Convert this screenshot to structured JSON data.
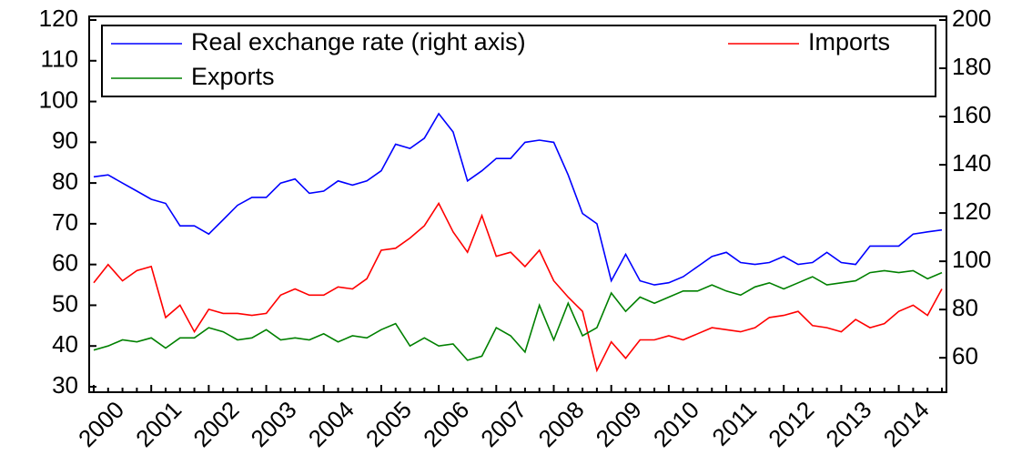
{
  "chart_data": {
    "type": "line",
    "categories": [
      "2000",
      null,
      null,
      null,
      "2001",
      null,
      null,
      null,
      "2002",
      null,
      null,
      null,
      "2003",
      null,
      null,
      null,
      "2004",
      null,
      null,
      null,
      "2005",
      null,
      null,
      null,
      "2006",
      null,
      null,
      null,
      "2007",
      null,
      null,
      null,
      "2008",
      null,
      null,
      null,
      "2009",
      null,
      null,
      null,
      "2010",
      null,
      null,
      null,
      "2011",
      null,
      null,
      null,
      "2012",
      null,
      null,
      null,
      "2013",
      null,
      null,
      null,
      "2014",
      null,
      null,
      null
    ],
    "ylim": [
      30,
      120
    ],
    "yticks": [
      30,
      40,
      50,
      60,
      70,
      80,
      90,
      100,
      110,
      120
    ],
    "y2lim": [
      48,
      200
    ],
    "y2ticks": [
      60,
      80,
      100,
      120,
      140,
      160,
      180,
      200
    ],
    "legend": "top-left",
    "series": [
      {
        "name": "Real exchange rate (right axis)",
        "color": "#0000ff",
        "axis": "y2",
        "values": [
          135.0,
          135.8,
          132.4,
          129.1,
          125.7,
          124.0,
          114.7,
          114.7,
          111.3,
          117.2,
          123.2,
          126.5,
          126.5,
          132.4,
          134.1,
          128.2,
          129.1,
          133.3,
          131.6,
          133.3,
          137.5,
          148.5,
          146.8,
          151.0,
          161.2,
          153.6,
          133.3,
          137.5,
          142.6,
          142.6,
          149.3,
          150.2,
          149.3,
          135.8,
          119.8,
          115.6,
          91.9,
          102.9,
          91.9,
          90.2,
          91.1,
          93.6,
          97.8,
          102.0,
          103.7,
          99.5,
          98.7,
          99.5,
          102.0,
          98.7,
          99.5,
          103.7,
          99.5,
          98.7,
          106.3,
          106.3,
          106.3,
          111.3,
          112.2,
          113.0
        ]
      },
      {
        "name": "Imports",
        "color": "#ff0000",
        "values": [
          55.5,
          60,
          56,
          58.5,
          59.5,
          47,
          50,
          43.5,
          49,
          48,
          48,
          47.5,
          48,
          52.5,
          54,
          52.5,
          52.5,
          54.5,
          54,
          56.5,
          63.5,
          64,
          66.5,
          69.5,
          75,
          68,
          63,
          72,
          62,
          63,
          59.5,
          63.5,
          56,
          52,
          48.5,
          34,
          41,
          37,
          41.5,
          41.5,
          42.5,
          41.5,
          43,
          44.5,
          44,
          43.5,
          44.5,
          47,
          47.5,
          48.5,
          45,
          44.5,
          43.5,
          46.5,
          44.5,
          45.5,
          48.5,
          50,
          47.5,
          54
        ]
      },
      {
        "name": "Exports",
        "color": "#008000",
        "values": [
          39,
          40,
          41.5,
          41,
          42,
          39.5,
          42,
          42,
          44.5,
          43.5,
          41.5,
          42,
          44,
          41.5,
          42,
          41.5,
          43,
          41,
          42.5,
          42,
          44,
          45.5,
          40,
          42,
          40,
          40.5,
          36.5,
          37.5,
          44.5,
          42.5,
          38.5,
          50,
          41.5,
          50.5,
          42.5,
          44.5,
          53,
          48.5,
          52,
          50.5,
          52,
          53.5,
          53.5,
          55,
          53.5,
          52.5,
          54.5,
          55.5,
          54,
          55.5,
          57,
          55,
          55.5,
          56,
          58,
          58.5,
          58,
          58.5,
          56.5,
          58
        ]
      }
    ]
  }
}
